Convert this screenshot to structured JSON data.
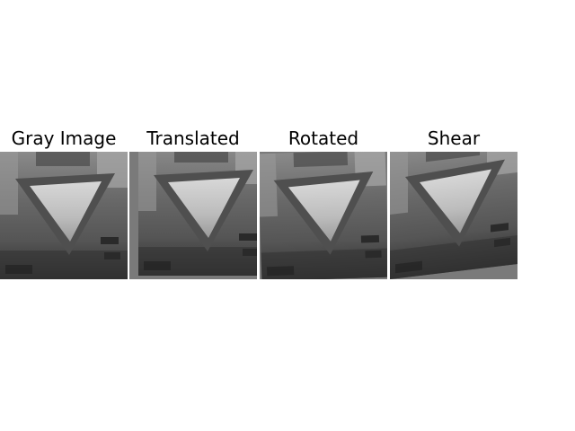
{
  "figure": {
    "panels": [
      {
        "title": "Gray Image",
        "transform": "original"
      },
      {
        "title": "Translated",
        "transform": "translate"
      },
      {
        "title": "Rotated",
        "transform": "rotate"
      },
      {
        "title": "Shear",
        "transform": "shear"
      }
    ]
  },
  "colors": {
    "background": "#ffffff",
    "title_text": "#000000",
    "fill_gray": "#7a7a7a"
  }
}
